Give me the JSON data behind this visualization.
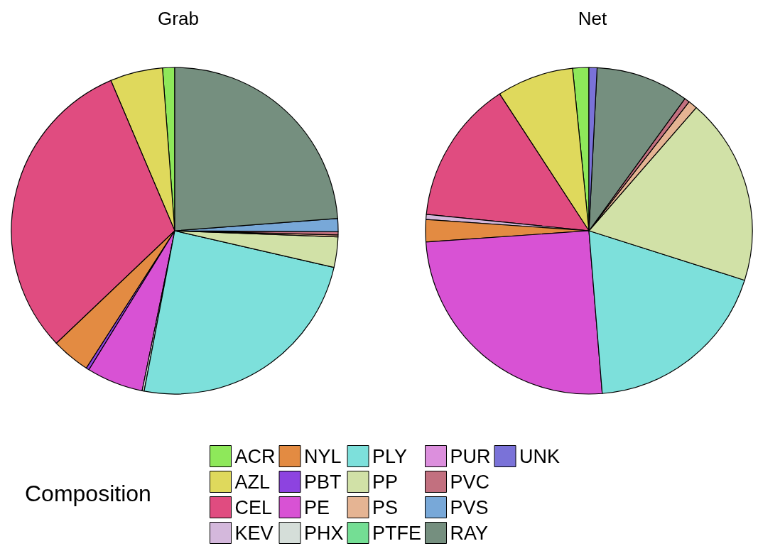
{
  "chart_data": {
    "type": "pie",
    "legend": "bottom",
    "legend_title": "Composition",
    "categories": [
      "ACR",
      "AZL",
      "CEL",
      "KEV",
      "NYL",
      "PBT",
      "PE",
      "PHX",
      "PLY",
      "PP",
      "PS",
      "PTFE",
      "PUR",
      "PVC",
      "PVS",
      "RAY",
      "UNK"
    ],
    "colors": [
      "#8ee85a",
      "#dfd95c",
      "#e04c80",
      "#d4b8dc",
      "#e38b42",
      "#8d43e0",
      "#d852d4",
      "#d5ded9",
      "#7de0db",
      "#d1e1a7",
      "#e5b493",
      "#74de94",
      "#dc8fdd",
      "#c2707f",
      "#78a8d8",
      "#758f7f",
      "#7a72d8"
    ],
    "series": [
      {
        "name": "Grab",
        "values": [
          1.2,
          5.2,
          30.7,
          0,
          3.8,
          0.3,
          5.6,
          0.2,
          24.4,
          3.0,
          0.2,
          0,
          0,
          0.3,
          1.3,
          23.8,
          0
        ]
      },
      {
        "name": "Net",
        "values": [
          1.6,
          7.6,
          14.2,
          0.5,
          2.2,
          0,
          25.2,
          0,
          18.8,
          18.5,
          0.9,
          0,
          0,
          0.5,
          0,
          9.2,
          0.8
        ]
      }
    ]
  }
}
